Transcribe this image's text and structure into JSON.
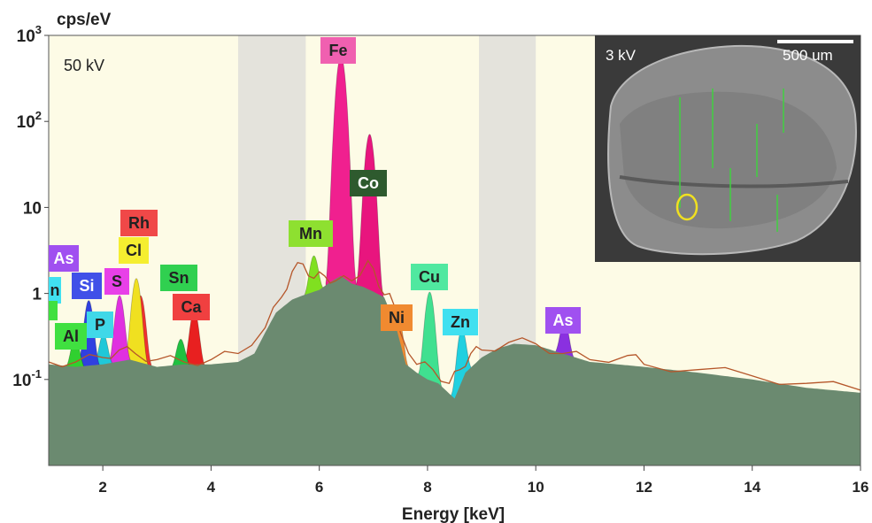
{
  "chart_data": {
    "type": "area",
    "title": "",
    "xlabel": "Energy [keV]",
    "ylabel": "cps/eV",
    "xlim": [
      1,
      16
    ],
    "ylim": [
      0.01,
      1000
    ],
    "y_scale": "log",
    "x_ticks": [
      "2",
      "4",
      "6",
      "8",
      "10",
      "12",
      "14",
      "16"
    ],
    "y_ticks": [
      {
        "base": "10",
        "exp": "3"
      },
      {
        "base": "10",
        "exp": "2"
      },
      {
        "base": "10",
        "exp": ""
      },
      {
        "base": "1",
        "exp": ""
      },
      {
        "base": "10",
        "exp": "-1"
      }
    ],
    "annotation": "50 kV",
    "shaded_bands_kev": [
      [
        4.5,
        5.75
      ],
      [
        8.95,
        10.0
      ]
    ],
    "background_spectrum": {
      "name": "background",
      "x": [
        1.0,
        1.5,
        2.0,
        2.5,
        3.0,
        3.5,
        4.0,
        4.5,
        4.8,
        5.0,
        5.2,
        5.5,
        5.7,
        6.0,
        6.2,
        6.4,
        6.6,
        6.8,
        7.0,
        7.2,
        7.4,
        7.6,
        7.8,
        8.0,
        8.2,
        8.5,
        8.7,
        9.0,
        9.3,
        9.6,
        10.0,
        10.5,
        11.0,
        11.5,
        12.0,
        13.0,
        14.0,
        15.0,
        16.0
      ],
      "y": [
        0.15,
        0.14,
        0.15,
        0.17,
        0.14,
        0.15,
        0.15,
        0.16,
        0.2,
        0.35,
        0.6,
        0.85,
        0.95,
        1.1,
        1.35,
        1.6,
        1.3,
        1.2,
        1.05,
        0.9,
        0.45,
        0.15,
        0.12,
        0.1,
        0.09,
        0.06,
        0.12,
        0.18,
        0.23,
        0.26,
        0.25,
        0.2,
        0.16,
        0.15,
        0.14,
        0.12,
        0.1,
        0.08,
        0.07
      ]
    },
    "measured_spectrum": {
      "name": "measured",
      "x": [
        1.0,
        1.5,
        2.0,
        2.3,
        2.6,
        3.0,
        3.5,
        4.0,
        4.5,
        5.0,
        5.3,
        5.5,
        5.7,
        5.9,
        6.1,
        6.3,
        6.6,
        6.9,
        7.1,
        7.3,
        7.5,
        7.8,
        8.1,
        8.4,
        8.6,
        8.8,
        9.0,
        9.5,
        10.0,
        10.5,
        11.0,
        11.7,
        12.0,
        13.0,
        14.0,
        15.0,
        16.0
      ],
      "y": [
        0.16,
        0.16,
        0.18,
        0.22,
        0.2,
        0.17,
        0.16,
        0.17,
        0.2,
        0.4,
        0.9,
        1.8,
        2.2,
        1.5,
        1.6,
        1.4,
        1.4,
        2.4,
        1.2,
        1.0,
        0.35,
        0.15,
        0.13,
        0.09,
        0.13,
        0.2,
        0.22,
        0.27,
        0.26,
        0.2,
        0.17,
        0.19,
        0.15,
        0.13,
        0.11,
        0.09,
        0.075
      ]
    },
    "element_peaks": [
      {
        "label": "Fe",
        "energy": 6.4,
        "height": 580,
        "color": "#f0208f"
      },
      {
        "label": "Co",
        "energy": 6.93,
        "height": 70,
        "color": "#e8157e"
      },
      {
        "label": "Mn",
        "energy": 5.9,
        "height": 1.8,
        "color": "#80e020"
      },
      {
        "label": "Cu",
        "energy": 8.04,
        "height": 0.95,
        "color": "#40e090"
      },
      {
        "label": "Zn",
        "energy": 8.63,
        "height": 0.3,
        "color": "#20d0e0"
      },
      {
        "label": "Ni",
        "energy": 7.47,
        "height": 0.25,
        "color": "#f08a30"
      },
      {
        "label": "As",
        "energy": 10.53,
        "height": 0.3,
        "color": "#8a30e0"
      },
      {
        "label": "Ca",
        "energy": 3.69,
        "height": 0.5,
        "color": "#e82020"
      },
      {
        "label": "Rh",
        "energy": 2.7,
        "height": 0.8,
        "color": "#f03030"
      },
      {
        "label": "Cl",
        "energy": 2.62,
        "height": 1.35,
        "color": "#f0e020"
      },
      {
        "label": "S",
        "energy": 2.31,
        "height": 0.8,
        "color": "#e030e0"
      },
      {
        "label": "P",
        "energy": 2.01,
        "height": 0.2,
        "color": "#20c8d8"
      },
      {
        "label": "Si",
        "energy": 1.74,
        "height": 0.7,
        "color": "#3040e0"
      },
      {
        "label": "Al",
        "energy": 1.49,
        "height": 0.18,
        "color": "#30d030"
      },
      {
        "label": "Sn",
        "energy": 3.44,
        "height": 0.16,
        "color": "#20c040"
      }
    ],
    "labels": [
      {
        "text": "Fe",
        "bg": "#f060b0",
        "fg": "#222222"
      },
      {
        "text": "Co",
        "bg": "#2e5a2e",
        "fg": "#ffffff"
      },
      {
        "text": "Mn",
        "bg": "#8ee030",
        "fg": "#222222"
      },
      {
        "text": "Cu",
        "bg": "#50e8a0",
        "fg": "#222222"
      },
      {
        "text": "Zn",
        "bg": "#40e0f0",
        "fg": "#222222"
      },
      {
        "text": "Ni",
        "bg": "#f08a30",
        "fg": "#222222"
      },
      {
        "text": "As",
        "bg": "#a050f0",
        "fg": "#ffffff"
      },
      {
        "text": "Ca",
        "bg": "#f04040",
        "fg": "#222222"
      },
      {
        "text": "Rh",
        "bg": "#f04848",
        "fg": "#222222"
      },
      {
        "text": "Cl",
        "bg": "#f5ee30",
        "fg": "#222222"
      },
      {
        "text": "S",
        "bg": "#e840e8",
        "fg": "#222222"
      },
      {
        "text": "P",
        "bg": "#40d8e8",
        "fg": "#222222"
      },
      {
        "text": "Si",
        "bg": "#4050e8",
        "fg": "#ffffff"
      },
      {
        "text": "Al",
        "bg": "#40e040",
        "fg": "#222222"
      },
      {
        "text": "Sn",
        "bg": "#30d050",
        "fg": "#222222"
      },
      {
        "text": "As",
        "bg": "#a050f0",
        "fg": "#ffffff"
      },
      {
        "text": "n",
        "bg": "#40e0f0",
        "fg": "#222222"
      },
      {
        "text": "",
        "bg": "#40e040",
        "fg": "#222222"
      }
    ],
    "inset": {
      "voltage": "3 kV",
      "scale_bar": "500 um"
    },
    "colors": {
      "plot_background": "#fdfbe6",
      "band": "#e4e3dc",
      "background_fill": "#6b8a70",
      "measured_line": "#b5562a",
      "marker_ring": "#f0e020"
    }
  }
}
